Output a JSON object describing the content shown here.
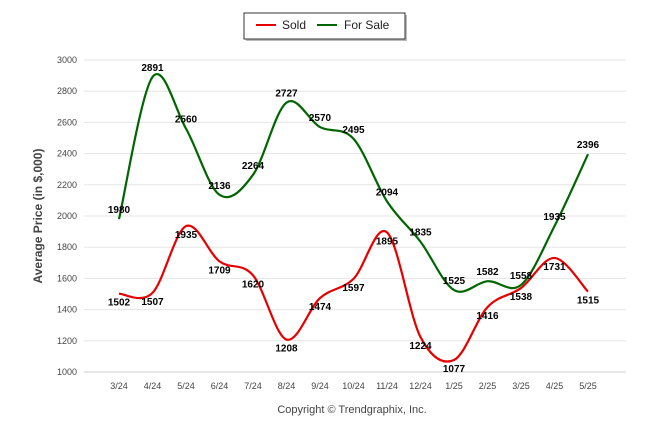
{
  "chart_data": {
    "type": "line",
    "categories": [
      "3/24",
      "4/24",
      "5/24",
      "6/24",
      "7/24",
      "8/24",
      "9/24",
      "10/24",
      "11/24",
      "12/24",
      "1/25",
      "2/25",
      "3/25",
      "4/25",
      "5/25"
    ],
    "series": [
      {
        "name": "Sold",
        "color": "#e60000",
        "values": [
          1502,
          1507,
          1935,
          1709,
          1620,
          1208,
          1474,
          1597,
          1895,
          1224,
          1077,
          1416,
          1538,
          1731,
          1515
        ]
      },
      {
        "name": "For Sale",
        "color": "#006600",
        "values": [
          1980,
          2891,
          2560,
          2136,
          2264,
          2727,
          2570,
          2495,
          2094,
          1835,
          1525,
          1582,
          1558,
          1935,
          2396
        ]
      }
    ],
    "ylabel": "Average Price (in $,000)",
    "ylim": [
      1000,
      3000
    ],
    "yticks": [
      "1000",
      "1200",
      "1400",
      "1600",
      "1800",
      "2000",
      "2200",
      "2400",
      "2600",
      "2800",
      "3000"
    ],
    "grid": true,
    "legend": "top-center"
  },
  "legend": {
    "sold_label": "Sold",
    "forsale_label": "For Sale"
  },
  "footer": {
    "copyright": "Copyright © Trendgraphix, Inc."
  }
}
